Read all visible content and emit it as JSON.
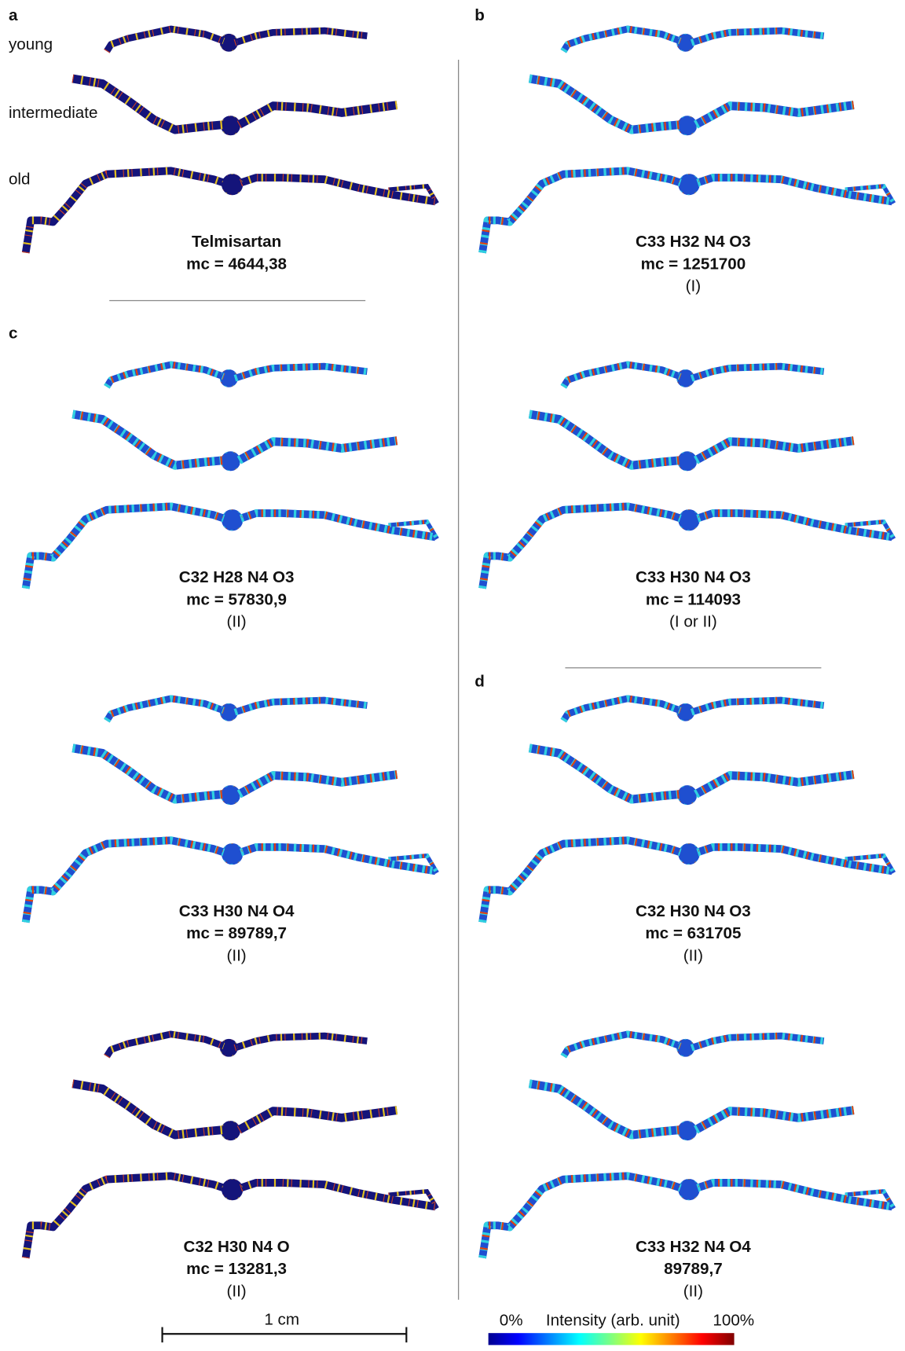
{
  "panel_labels": [
    "a",
    "b",
    "c",
    "d"
  ],
  "row_labels": [
    "young",
    "intermediate",
    "old"
  ],
  "images": [
    {
      "title": "Telmisartan",
      "mc": "mc = 4644,38"
    },
    {
      "title": "C33 H32 N4 O3",
      "mc": "mc = 1251700",
      "assignment": "(I)"
    },
    {
      "title": "C32 H28 N4 O3",
      "mc": "mc = 57830,9",
      "assignment": "(II)"
    },
    {
      "title": "C33 H30 N4 O3",
      "mc": "mc = 114093",
      "assignment": "(I or II)"
    },
    {
      "title": "C33 H30 N4 O4",
      "mc": "mc = 89789,7",
      "assignment": "(II)"
    },
    {
      "title": "C32 H30 N4 O3",
      "mc": "mc = 631705",
      "assignment": "(II)"
    },
    {
      "title": "C32 H30 N4 O",
      "mc": "mc = 13281,3",
      "assignment": "(II)"
    },
    {
      "title": "C33 H32 N4 O4",
      "mc": "89789,7",
      "assignment": "(II)"
    }
  ],
  "scale_bar": "1 cm",
  "colorbar": {
    "min_label": "0%",
    "title": "Intensity (arb. unit)",
    "max_label": "100%"
  }
}
